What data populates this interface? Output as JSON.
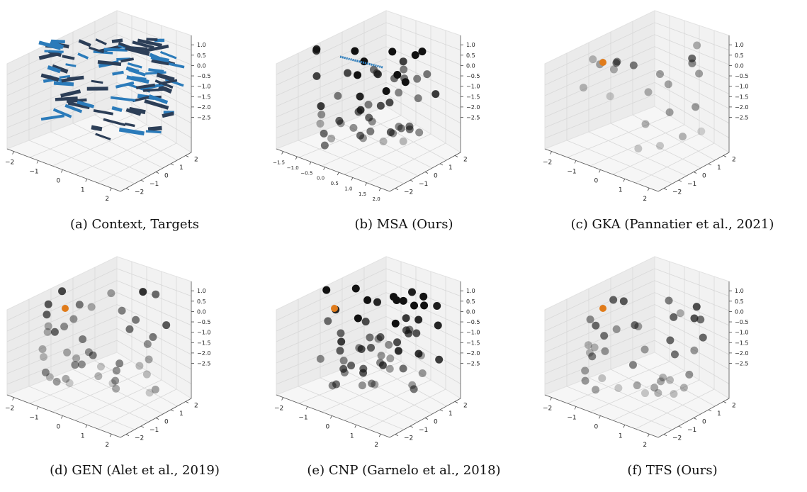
{
  "panels": [
    {
      "caption": "(a) Context, Targets",
      "style": "arrows",
      "xticks": [
        "−2",
        "−1",
        "0",
        "1",
        "2"
      ],
      "yticks": [
        "−2",
        "−1",
        "0",
        "1",
        "2"
      ],
      "zticks": [
        "1.0",
        "0.5",
        "0.0",
        "−0.5",
        "−1.0",
        "−1.5",
        "−2.0",
        "−2.5"
      ],
      "seed": 3
    },
    {
      "caption": "(b) MSA (Ours)",
      "style": "dots",
      "xticks": [
        "−1.5",
        "−1.0",
        "−0.5",
        "0.0",
        "0.5",
        "1.0",
        "1.5",
        "2.0"
      ],
      "yticks": [
        "−2",
        "−1",
        "0",
        "1",
        "2"
      ],
      "zticks": [
        "1.0",
        "0.5",
        "0.0",
        "−0.5",
        "−1.0",
        "−1.5",
        "−2.0",
        "−2.5"
      ],
      "seed": 11,
      "count": 55,
      "alpha": 0.95
    },
    {
      "caption": "(c) GKA (Pannatier et al., 2021)",
      "style": "dots",
      "xticks": [
        "−2",
        "−1",
        "0",
        "1",
        "2"
      ],
      "yticks": [
        "−2",
        "−1",
        "0",
        "1",
        "2"
      ],
      "zticks": [
        "1.0",
        "0.5",
        "0.0",
        "−0.5",
        "−1.0",
        "−1.5",
        "−2.0",
        "−2.5"
      ],
      "seed": 21,
      "count": 22,
      "alpha": 0.45,
      "orange": true
    },
    {
      "caption": "(d) GEN (Alet et al., 2019)",
      "style": "dots",
      "xticks": [
        "−2",
        "−1",
        "0",
        "1",
        "2"
      ],
      "yticks": [
        "−2",
        "−1",
        "0",
        "1",
        "2"
      ],
      "zticks": [
        "1.0",
        "0.5",
        "0.0",
        "−0.5",
        "−1.0",
        "−1.5",
        "−2.0",
        "−2.5"
      ],
      "seed": 31,
      "count": 45,
      "alpha": 0.6,
      "orange": true
    },
    {
      "caption": "(e) CNP (Garnelo et al., 2018)",
      "style": "dots",
      "xticks": [
        "−2",
        "−1",
        "0",
        "1",
        "2"
      ],
      "yticks": [
        "−2",
        "−1",
        "0",
        "1",
        "2"
      ],
      "zticks": [
        "1.0",
        "0.5",
        "0.0",
        "−0.5",
        "−1.0",
        "−1.5",
        "−2.0",
        "−2.5"
      ],
      "seed": 41,
      "count": 60,
      "alpha": 0.95,
      "orange": true
    },
    {
      "caption": "(f) TFS (Ours)",
      "style": "dots",
      "xticks": [
        "−2",
        "−1",
        "0",
        "1",
        "2"
      ],
      "yticks": [
        "−2",
        "−1",
        "0",
        "1",
        "2"
      ],
      "zticks": [
        "1.0",
        "0.5",
        "0.0",
        "−0.5",
        "−1.0",
        "−1.5",
        "−2.0",
        "−2.5"
      ],
      "seed": 51,
      "count": 40,
      "alpha": 0.6,
      "orange": true
    }
  ],
  "colors": {
    "point": "#111111",
    "arrow_dark": "#2c3e57",
    "arrow_light": "#2b7bba",
    "highlight": "#e07b1a",
    "pane": "#f0f0f0",
    "grid": "#d8d8d8"
  },
  "chart_data": [
    {
      "type": "scatter",
      "subtitle": "(a) Context, Targets",
      "zlim": [
        -2.5,
        1.0
      ],
      "xlim": [
        -2,
        2
      ],
      "ylim": [
        -2,
        2
      ]
    },
    {
      "type": "scatter",
      "subtitle": "(b) MSA (Ours)",
      "zlim": [
        -2.5,
        1.0
      ],
      "xlim": [
        -1.5,
        2.0
      ],
      "ylim": [
        -2,
        2
      ]
    },
    {
      "type": "scatter",
      "subtitle": "(c) GKA (Pannatier et al., 2021)",
      "zlim": [
        -2.5,
        1.0
      ],
      "xlim": [
        -2,
        2
      ],
      "ylim": [
        -2,
        2
      ]
    },
    {
      "type": "scatter",
      "subtitle": "(d) GEN (Alet et al., 2019)",
      "zlim": [
        -2.5,
        1.0
      ],
      "xlim": [
        -2,
        2
      ],
      "ylim": [
        -2,
        2
      ]
    },
    {
      "type": "scatter",
      "subtitle": "(e) CNP (Garnelo et al., 2018)",
      "zlim": [
        -2.5,
        1.0
      ],
      "xlim": [
        -2,
        2
      ],
      "ylim": [
        -2,
        2
      ]
    },
    {
      "type": "scatter",
      "subtitle": "(f) TFS (Ours)",
      "zlim": [
        -2.5,
        1.0
      ],
      "xlim": [
        -2,
        2
      ],
      "ylim": [
        -2,
        2
      ]
    }
  ]
}
